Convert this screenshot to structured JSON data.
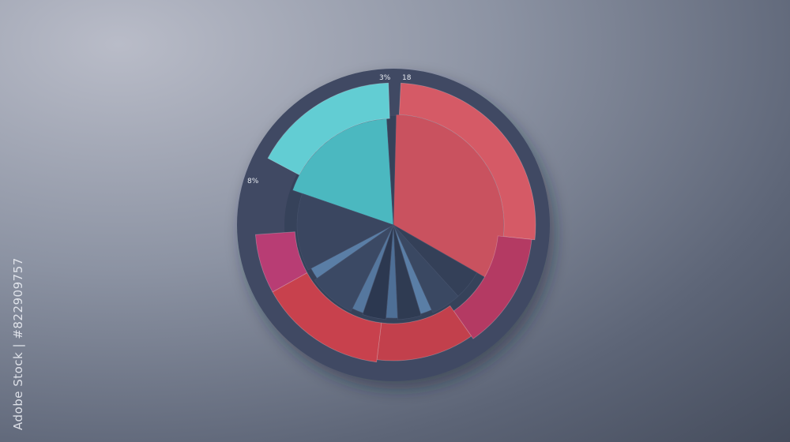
{
  "chart_data": {
    "type": "pie",
    "style": "donut with outer highlighted bands",
    "title": "",
    "labels": [
      "3%",
      "18",
      "8%"
    ],
    "inner_slices": [
      {
        "color": "#4bb8c0",
        "value": 19
      },
      {
        "color": "#c9525f",
        "value": 34
      },
      {
        "color": "#344058",
        "value": 5
      },
      {
        "color": "#3a4862",
        "value": 5
      },
      {
        "color": "#5a7ea6",
        "value": 2
      },
      {
        "color": "#2f3b52",
        "value": 4
      },
      {
        "color": "#4e6f96",
        "value": 2
      },
      {
        "color": "#2c3850",
        "value": 4
      },
      {
        "color": "#55779e",
        "value": 2
      },
      {
        "color": "#3b4964",
        "value": 8
      },
      {
        "color": "#5a7ea6",
        "value": 2
      },
      {
        "color": "#3a4660",
        "value": 13
      }
    ],
    "outer_bands": [
      {
        "color": "#62cdd3",
        "value": 17
      },
      {
        "color": "#d55a66",
        "value": 26
      },
      {
        "color": "#b43a63",
        "value": 13
      },
      {
        "color": "#c2404c",
        "value": 11
      },
      {
        "color": "#c8414d",
        "value": 15
      },
      {
        "color": "#b83d74",
        "value": 7
      }
    ],
    "colors": {
      "ring": "#3f4a63",
      "teal": "#4bb8c0",
      "red": "#c9525f",
      "magenta": "#b43a63",
      "navy": "#2f3b52"
    }
  },
  "watermark": "Adobe Stock | #822909757"
}
